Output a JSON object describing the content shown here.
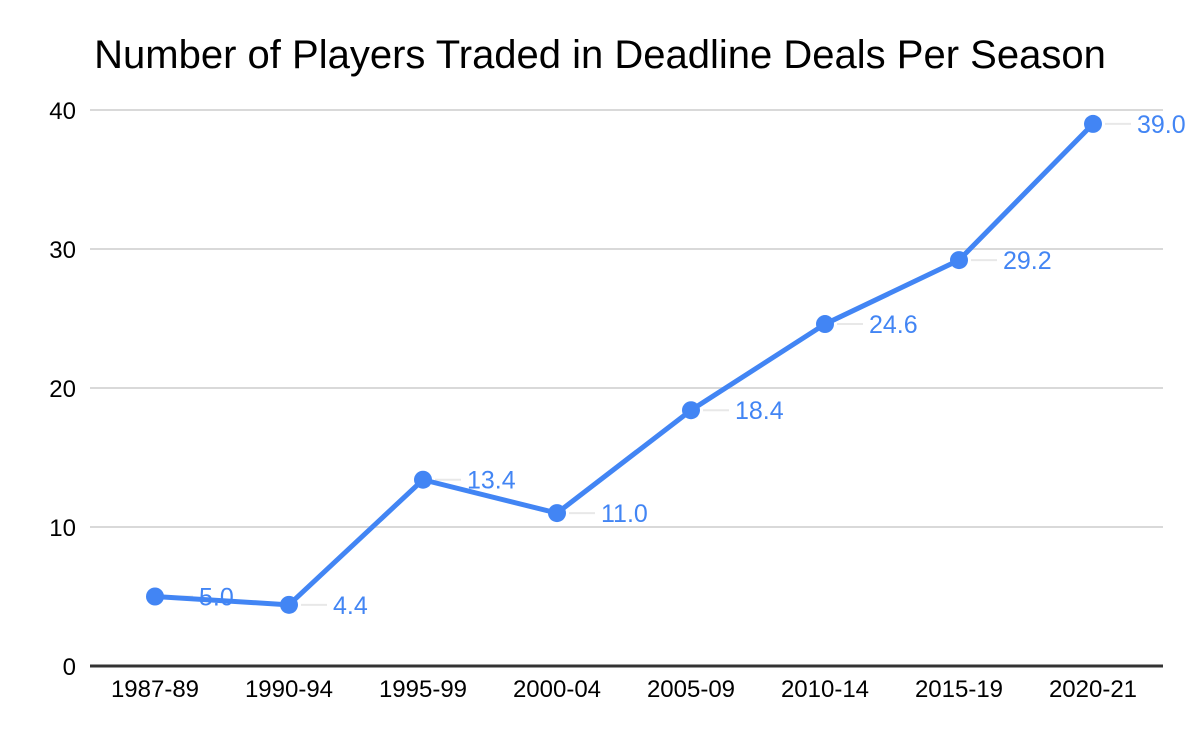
{
  "chart_data": {
    "type": "line",
    "title": "Number of Players Traded in Deadline Deals Per Season",
    "categories": [
      "1987-89",
      "1990-94",
      "1995-99",
      "2000-04",
      "2005-09",
      "2010-14",
      "2015-19",
      "2020-21"
    ],
    "values": [
      5.0,
      4.4,
      13.4,
      11.0,
      18.4,
      24.6,
      29.2,
      39.0
    ],
    "data_labels": [
      "5.0",
      "4.4",
      "13.4",
      "11.0",
      "18.4",
      "24.6",
      "29.2",
      "39.0"
    ],
    "xlabel": "",
    "ylabel": "",
    "y_ticks": [
      0,
      10,
      20,
      30,
      40
    ],
    "ylim": [
      0,
      40
    ],
    "grid": "horizontal",
    "legend_position": "none",
    "marker": "circle",
    "colors": {
      "series": "#4285f4",
      "data_label": "#4285f4",
      "grid": "#d9d9d9",
      "leader": "#e8e8e8",
      "axis": "#333333",
      "tick_label": "#000000",
      "title": "#000000",
      "background": "#ffffff"
    }
  }
}
